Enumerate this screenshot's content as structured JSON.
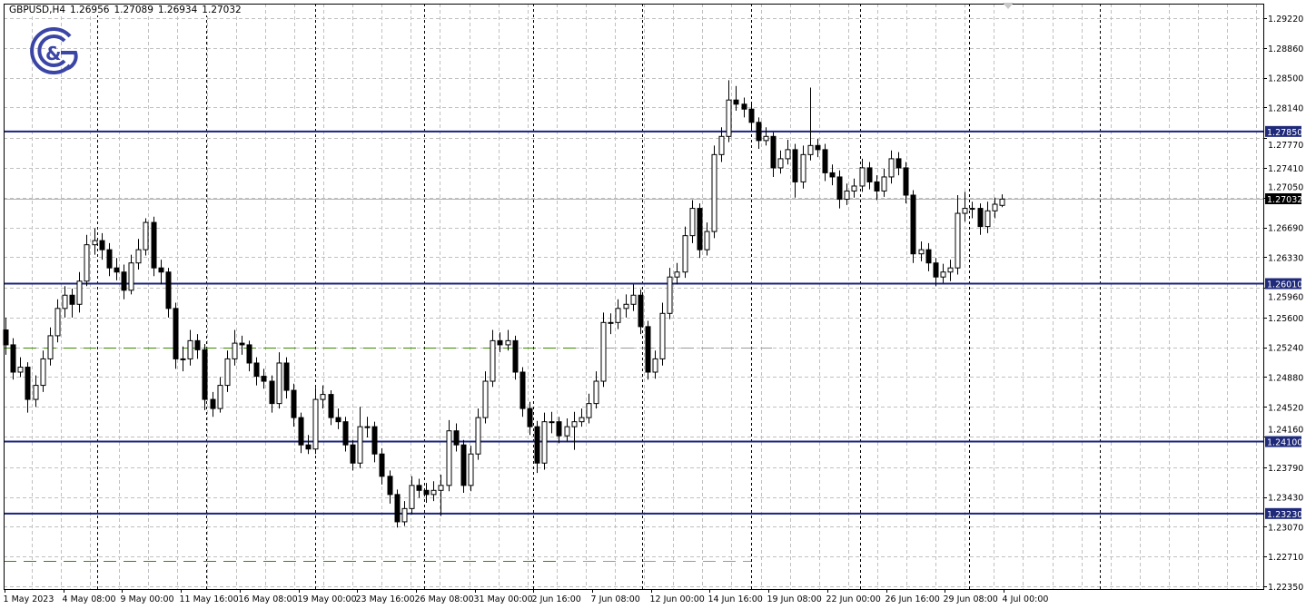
{
  "header": {
    "symbol": "GBPUSD,H4",
    "open": "1.26956",
    "high": "1.27089",
    "low": "1.26934",
    "close": "1.27032"
  },
  "logo": {
    "text": "G&G",
    "color": "#3b45a6"
  },
  "colors": {
    "bull_body": "#ffffff",
    "bear_body": "#000000",
    "candle_outline": "#000000",
    "level_line": "#1a237e",
    "level_label_bg": "#1f2a7a",
    "current_label_bg": "#000000",
    "grid": "#c0c0c0",
    "dashed_level_green": "#3a8a00",
    "dashed_level_gray": "#9a9a9a"
  },
  "chart_data": {
    "type": "candlestick",
    "title": "GBPUSD,H4",
    "ylim": [
      1.2235,
      1.2922
    ],
    "grid": true,
    "y_ticks": [
      "1.29220",
      "1.28860",
      "1.28500",
      "1.28140",
      "1.27770",
      "1.27410",
      "1.27050",
      "1.26690",
      "1.26330",
      "1.25960",
      "1.25600",
      "1.25240",
      "1.24880",
      "1.24520",
      "1.24160",
      "1.23790",
      "1.23430",
      "1.23070",
      "1.22710",
      "1.22350"
    ],
    "x_labels": [
      "1 May 2023",
      "4 May 08:00",
      "9 May 00:00",
      "11 May 16:00",
      "16 May 08:00",
      "19 May 00:00",
      "23 May 16:00",
      "26 May 08:00",
      "31 May 00:00",
      "2 Jun 16:00",
      "7 Jun 08:00",
      "12 Jun 00:00",
      "14 Jun 16:00",
      "19 Jun 08:00",
      "22 Jun 00:00",
      "26 Jun 16:00",
      "29 Jun 08:00",
      "4 Jul 00:00"
    ],
    "levels": [
      "1.27850",
      "1.26010",
      "1.24100",
      "1.23230"
    ],
    "current_price": "1.27032",
    "dashed_levels": [
      1.2524,
      1.2266
    ],
    "ohlc": [
      [
        1.2545,
        1.256,
        1.2515,
        1.2527
      ],
      [
        1.2527,
        1.2535,
        1.2485,
        1.2494
      ],
      [
        1.2494,
        1.2512,
        1.2488,
        1.25
      ],
      [
        1.25,
        1.2506,
        1.2445,
        1.2461
      ],
      [
        1.2461,
        1.249,
        1.2452,
        1.2478
      ],
      [
        1.2478,
        1.252,
        1.247,
        1.251
      ],
      [
        1.251,
        1.2548,
        1.2502,
        1.2538
      ],
      [
        1.2538,
        1.2582,
        1.253,
        1.2571
      ],
      [
        1.2571,
        1.2598,
        1.256,
        1.2587
      ],
      [
        1.2587,
        1.2595,
        1.256,
        1.2576
      ],
      [
        1.2576,
        1.2615,
        1.2566,
        1.2604
      ],
      [
        1.2604,
        1.266,
        1.2598,
        1.2648
      ],
      [
        1.2648,
        1.2668,
        1.2636,
        1.2653
      ],
      [
        1.2653,
        1.2662,
        1.263,
        1.2642
      ],
      [
        1.2642,
        1.265,
        1.261,
        1.262
      ],
      [
        1.262,
        1.2632,
        1.2605,
        1.2615
      ],
      [
        1.2615,
        1.2624,
        1.2582,
        1.2593
      ],
      [
        1.2593,
        1.2636,
        1.2588,
        1.2626
      ],
      [
        1.2626,
        1.2655,
        1.2618,
        1.2642
      ],
      [
        1.2642,
        1.268,
        1.2635,
        1.2675
      ],
      [
        1.2675,
        1.2682,
        1.261,
        1.262
      ],
      [
        1.262,
        1.263,
        1.26,
        1.2615
      ],
      [
        1.2615,
        1.262,
        1.256,
        1.2571
      ],
      [
        1.2571,
        1.2578,
        1.2498,
        1.251
      ],
      [
        1.251,
        1.2525,
        1.2495,
        1.251
      ],
      [
        1.251,
        1.2545,
        1.2502,
        1.2532
      ],
      [
        1.2532,
        1.254,
        1.251,
        1.2521
      ],
      [
        1.2521,
        1.2528,
        1.2448,
        1.2461
      ],
      [
        1.2461,
        1.247,
        1.244,
        1.245
      ],
      [
        1.245,
        1.2488,
        1.2445,
        1.2478
      ],
      [
        1.2478,
        1.252,
        1.247,
        1.251
      ],
      [
        1.251,
        1.2545,
        1.2502,
        1.2529
      ],
      [
        1.2529,
        1.2538,
        1.2515,
        1.2527
      ],
      [
        1.2527,
        1.2532,
        1.2495,
        1.2505
      ],
      [
        1.2505,
        1.2512,
        1.2478,
        1.2489
      ],
      [
        1.2489,
        1.2498,
        1.2474,
        1.2483
      ],
      [
        1.2483,
        1.249,
        1.2445,
        1.2456
      ],
      [
        1.2456,
        1.2518,
        1.245,
        1.2505
      ],
      [
        1.2505,
        1.2512,
        1.2462,
        1.2472
      ],
      [
        1.2472,
        1.248,
        1.2428,
        1.2439
      ],
      [
        1.2439,
        1.2445,
        1.2396,
        1.2406
      ],
      [
        1.2406,
        1.2418,
        1.2395,
        1.2401
      ],
      [
        1.2401,
        1.2475,
        1.2395,
        1.2461
      ],
      [
        1.2461,
        1.2478,
        1.245,
        1.2467
      ],
      [
        1.2467,
        1.2472,
        1.243,
        1.2439
      ],
      [
        1.2439,
        1.245,
        1.2425,
        1.2434
      ],
      [
        1.2434,
        1.244,
        1.2398,
        1.2406
      ],
      [
        1.2406,
        1.2412,
        1.2375,
        1.2384
      ],
      [
        1.2384,
        1.2452,
        1.2378,
        1.2428
      ],
      [
        1.2428,
        1.244,
        1.2415,
        1.2428
      ],
      [
        1.2428,
        1.2434,
        1.2385,
        1.2395
      ],
      [
        1.2395,
        1.2402,
        1.2358,
        1.2368
      ],
      [
        1.2368,
        1.2375,
        1.2335,
        1.2346
      ],
      [
        1.2346,
        1.2352,
        1.2306,
        1.2313
      ],
      [
        1.2313,
        1.2338,
        1.2308,
        1.2329
      ],
      [
        1.2329,
        1.2368,
        1.2322,
        1.2357
      ],
      [
        1.2357,
        1.2365,
        1.2342,
        1.2351
      ],
      [
        1.2351,
        1.236,
        1.2336,
        1.2346
      ],
      [
        1.2346,
        1.2362,
        1.2338,
        1.2351
      ],
      [
        1.2351,
        1.237,
        1.232,
        1.2357
      ],
      [
        1.2357,
        1.2436,
        1.235,
        1.2423
      ],
      [
        1.2423,
        1.2432,
        1.2398,
        1.2406
      ],
      [
        1.2406,
        1.2412,
        1.2348,
        1.2357
      ],
      [
        1.2357,
        1.2405,
        1.235,
        1.2395
      ],
      [
        1.2395,
        1.245,
        1.2388,
        1.2439
      ],
      [
        1.2439,
        1.2495,
        1.2432,
        1.2483
      ],
      [
        1.2483,
        1.2545,
        1.2476,
        1.2532
      ],
      [
        1.2532,
        1.2542,
        1.2518,
        1.2527
      ],
      [
        1.2527,
        1.2545,
        1.252,
        1.2532
      ],
      [
        1.2532,
        1.2538,
        1.2485,
        1.2494
      ],
      [
        1.2494,
        1.25,
        1.244,
        1.245
      ],
      [
        1.245,
        1.2458,
        1.2418,
        1.2428
      ],
      [
        1.2428,
        1.2435,
        1.2372,
        1.2384
      ],
      [
        1.2384,
        1.2445,
        1.2376,
        1.2434
      ],
      [
        1.2434,
        1.2446,
        1.242,
        1.2434
      ],
      [
        1.2434,
        1.244,
        1.2408,
        1.2417
      ],
      [
        1.2417,
        1.2438,
        1.241,
        1.2428
      ],
      [
        1.2428,
        1.2446,
        1.24,
        1.2434
      ],
      [
        1.2434,
        1.245,
        1.2428,
        1.2439
      ],
      [
        1.2439,
        1.2468,
        1.2432,
        1.2456
      ],
      [
        1.2456,
        1.2495,
        1.245,
        1.2483
      ],
      [
        1.2483,
        1.2566,
        1.2476,
        1.2554
      ],
      [
        1.2554,
        1.2565,
        1.254,
        1.2554
      ],
      [
        1.2554,
        1.2582,
        1.2546,
        1.2571
      ],
      [
        1.2571,
        1.2588,
        1.256,
        1.2576
      ],
      [
        1.2576,
        1.26,
        1.2568,
        1.2587
      ],
      [
        1.2587,
        1.2594,
        1.254,
        1.2549
      ],
      [
        1.2549,
        1.2556,
        1.2485,
        1.2494
      ],
      [
        1.2494,
        1.252,
        1.2486,
        1.251
      ],
      [
        1.251,
        1.2578,
        1.2502,
        1.2565
      ],
      [
        1.2565,
        1.262,
        1.2558,
        1.2609
      ],
      [
        1.2609,
        1.2626,
        1.26,
        1.2615
      ],
      [
        1.2615,
        1.267,
        1.2608,
        1.2659
      ],
      [
        1.2659,
        1.2702,
        1.265,
        1.2692
      ],
      [
        1.2692,
        1.2698,
        1.2632,
        1.2642
      ],
      [
        1.2642,
        1.2675,
        1.2635,
        1.2664
      ],
      [
        1.2664,
        1.2768,
        1.2656,
        1.2757
      ],
      [
        1.2757,
        1.279,
        1.2748,
        1.2779
      ],
      [
        1.2779,
        1.2847,
        1.2772,
        1.2823
      ],
      [
        1.2823,
        1.284,
        1.281,
        1.2818
      ],
      [
        1.2818,
        1.2826,
        1.2802,
        1.2812
      ],
      [
        1.2812,
        1.2818,
        1.2786,
        1.2796
      ],
      [
        1.2796,
        1.2802,
        1.2764,
        1.2774
      ],
      [
        1.2774,
        1.279,
        1.2768,
        1.2779
      ],
      [
        1.2779,
        1.2784,
        1.273,
        1.2741
      ],
      [
        1.2741,
        1.2762,
        1.2734,
        1.2752
      ],
      [
        1.2752,
        1.2775,
        1.2745,
        1.2763
      ],
      [
        1.2763,
        1.277,
        1.2705,
        1.2724
      ],
      [
        1.2724,
        1.2768,
        1.2716,
        1.2757
      ],
      [
        1.2757,
        1.2838,
        1.275,
        1.2768
      ],
      [
        1.2768,
        1.2776,
        1.2754,
        1.2763
      ],
      [
        1.2763,
        1.277,
        1.2725,
        1.2735
      ],
      [
        1.2735,
        1.2745,
        1.272,
        1.273
      ],
      [
        1.273,
        1.2738,
        1.2692,
        1.2703
      ],
      [
        1.2703,
        1.2722,
        1.2696,
        1.2713
      ],
      [
        1.2713,
        1.2728,
        1.2705,
        1.2719
      ],
      [
        1.2719,
        1.2752,
        1.2712,
        1.2741
      ],
      [
        1.2741,
        1.2748,
        1.2715,
        1.2724
      ],
      [
        1.2724,
        1.2732,
        1.2702,
        1.2713
      ],
      [
        1.2713,
        1.274,
        1.2706,
        1.273
      ],
      [
        1.273,
        1.2762,
        1.2722,
        1.2752
      ],
      [
        1.2752,
        1.276,
        1.2732,
        1.2741
      ],
      [
        1.2741,
        1.2748,
        1.2698,
        1.2708
      ],
      [
        1.2708,
        1.2714,
        1.2626,
        1.2637
      ],
      [
        1.2637,
        1.2652,
        1.2628,
        1.2642
      ],
      [
        1.2642,
        1.265,
        1.2616,
        1.2626
      ],
      [
        1.2626,
        1.2632,
        1.2598,
        1.2609
      ],
      [
        1.2609,
        1.2625,
        1.2602,
        1.2615
      ],
      [
        1.2615,
        1.263,
        1.2604,
        1.262
      ],
      [
        1.262,
        1.2708,
        1.2612,
        1.2686
      ],
      [
        1.2686,
        1.2712,
        1.2676,
        1.2692
      ],
      [
        1.2692,
        1.27,
        1.268,
        1.2692
      ],
      [
        1.2692,
        1.2698,
        1.266,
        1.267
      ],
      [
        1.267,
        1.27,
        1.2662,
        1.2689
      ],
      [
        1.2689,
        1.2705,
        1.268,
        1.2697
      ],
      [
        1.26956,
        1.27089,
        1.26934,
        1.27032
      ]
    ]
  }
}
